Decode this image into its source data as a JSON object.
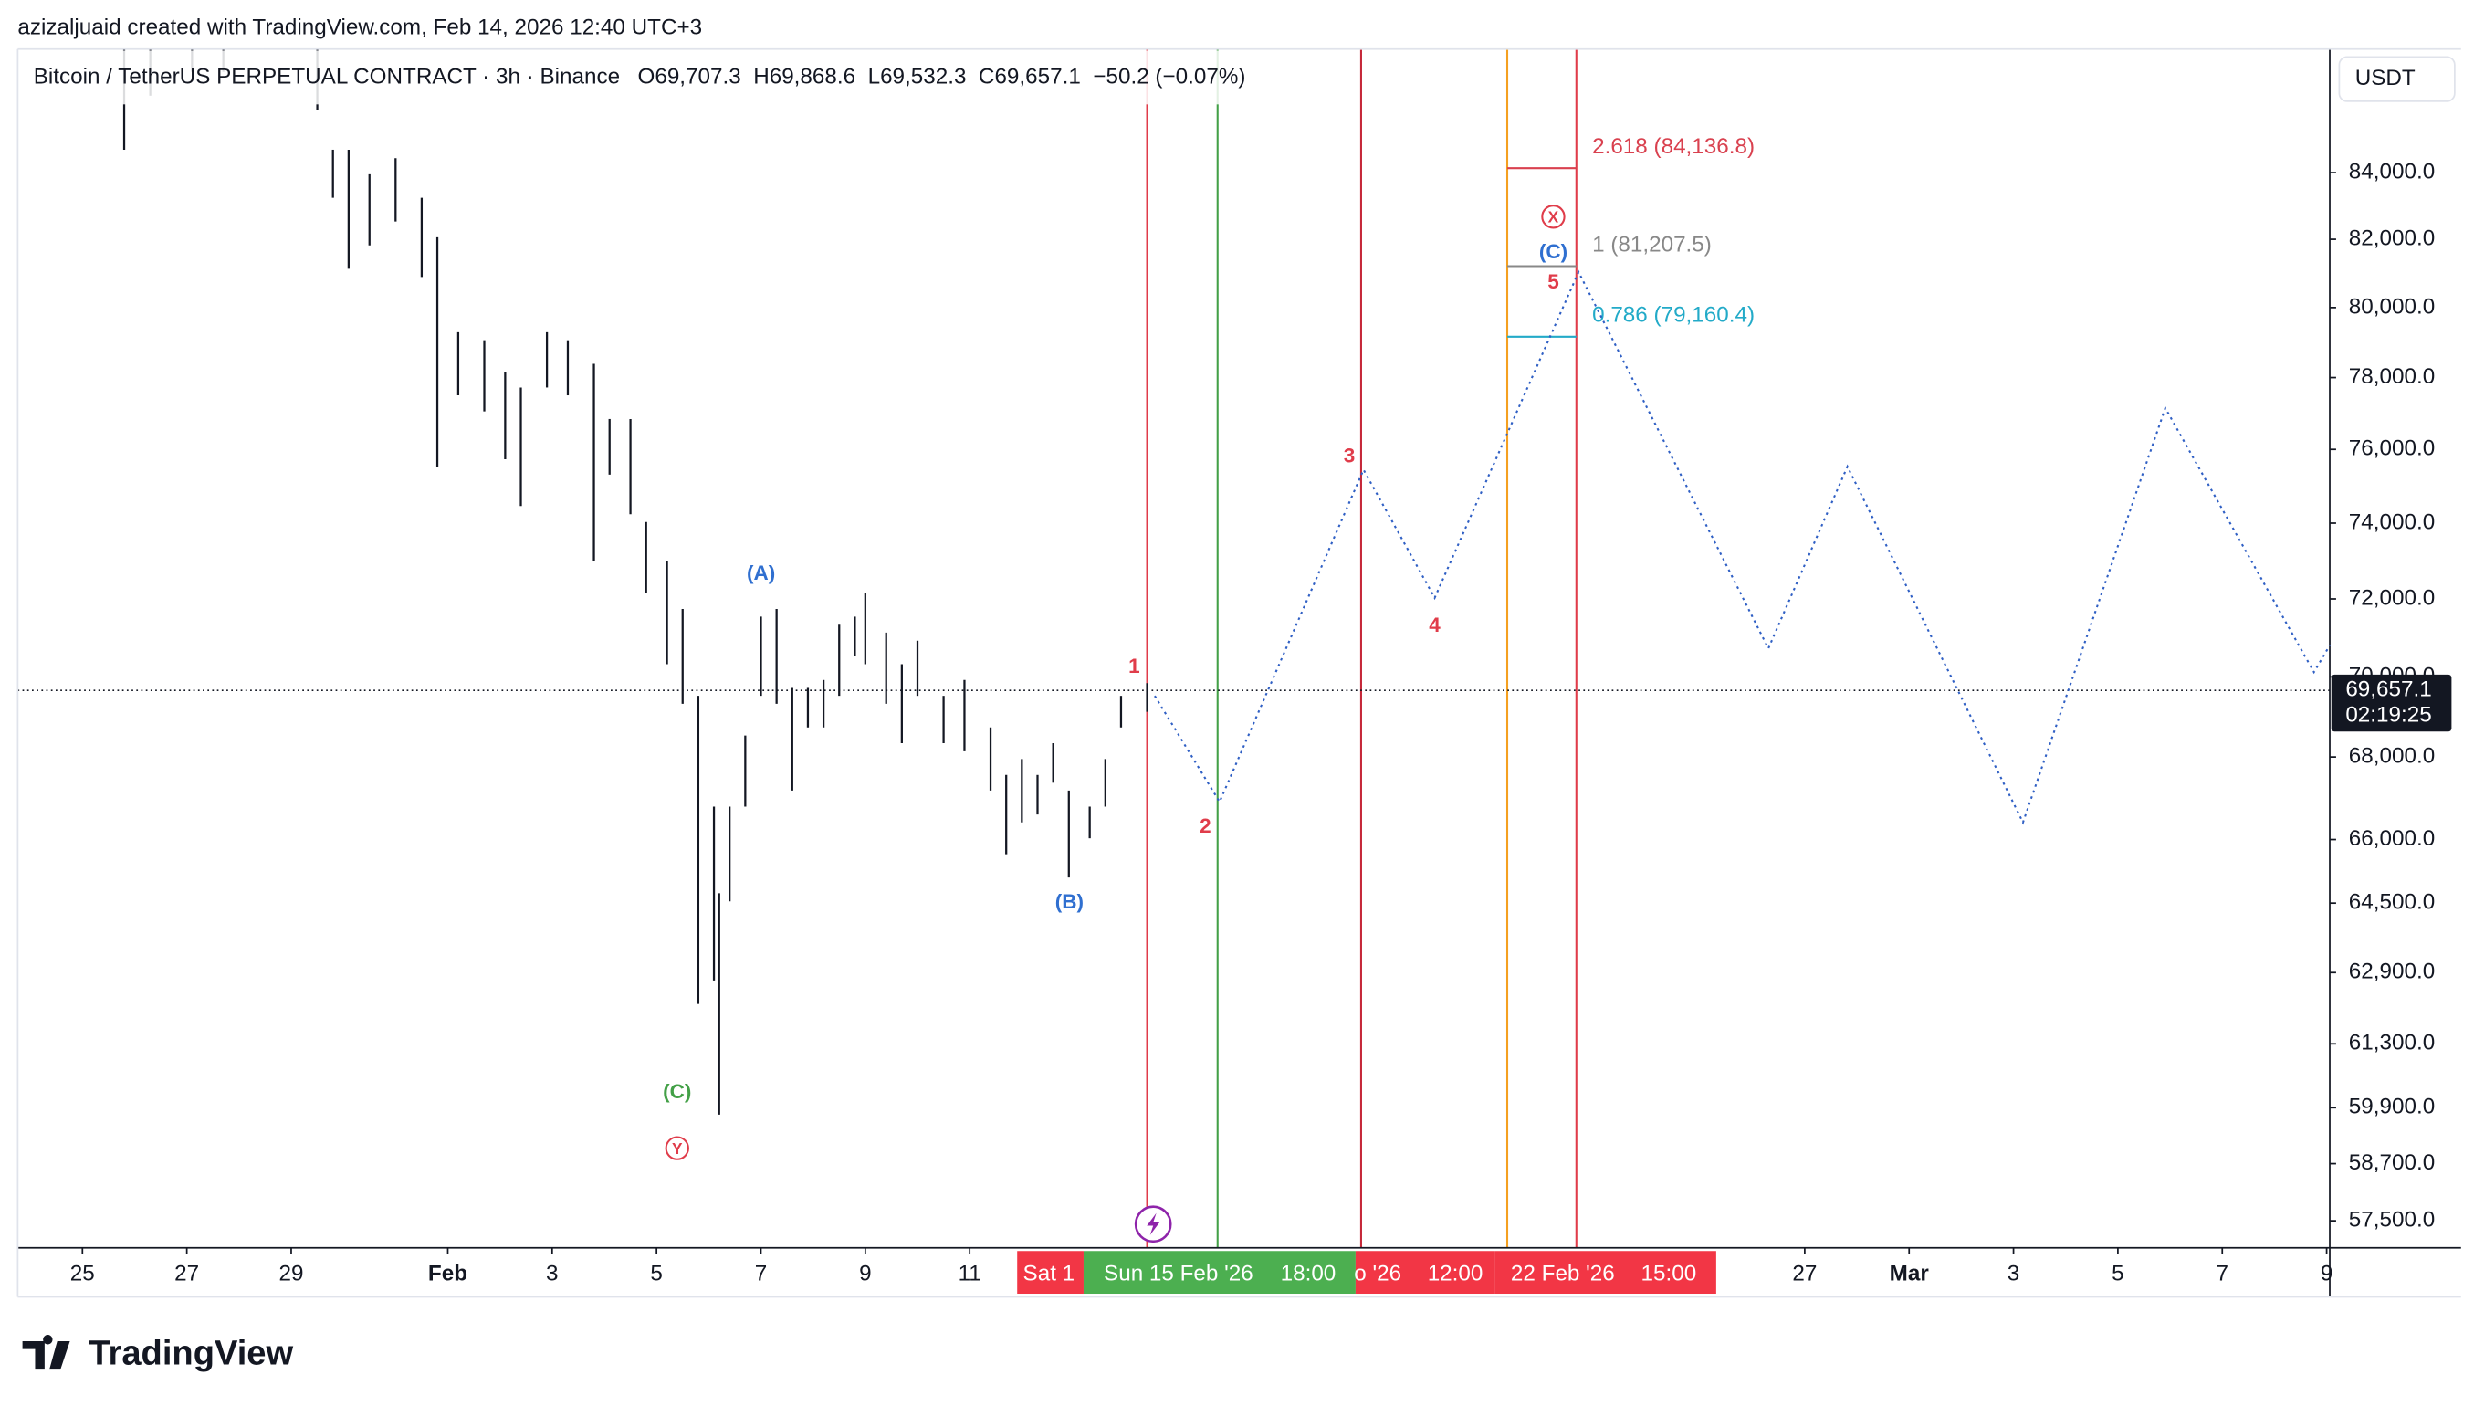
{
  "header": {
    "credit": "azizaljuaid created with TradingView.com, Feb 14, 2026 12:40 UTC+3",
    "brand": "TradingView"
  },
  "chart_data": {
    "type": "ohlc",
    "title": "Bitcoin / TetherUS PERPETUAL CONTRACT · 3h · Binance",
    "ohlc_text": "O69,707.3  H69,868.6  L69,532.3  C69,657.1  −50.2 (−0.07%)",
    "currency": "USDT",
    "log_scale": true,
    "color": "#131722",
    "xlim": [
      23.76,
      68.06
    ],
    "ylim": [
      56940,
      87840
    ],
    "yticks": [
      {
        "value": 84000,
        "label": "84,000.0"
      },
      {
        "value": 82000,
        "label": "82,000.0"
      },
      {
        "value": 80000,
        "label": "80,000.0"
      },
      {
        "value": 78000,
        "label": "78,000.0"
      },
      {
        "value": 76000,
        "label": "76,000.0"
      },
      {
        "value": 74000,
        "label": "74,000.0"
      },
      {
        "value": 72000,
        "label": "72,000.0"
      },
      {
        "value": 70000,
        "label": "70,000.0"
      },
      {
        "value": 68000,
        "label": "68,000.0"
      },
      {
        "value": 66000,
        "label": "66,000.0"
      },
      {
        "value": 64500,
        "label": "64,500.0"
      },
      {
        "value": 62900,
        "label": "62,900.0"
      },
      {
        "value": 61300,
        "label": "61,300.0"
      },
      {
        "value": 59900,
        "label": "59,900.0"
      },
      {
        "value": 58700,
        "label": "58,700.0"
      },
      {
        "value": 57500,
        "label": "57,500.0"
      }
    ],
    "xticks": [
      25,
      27,
      29,
      {
        "value": 32,
        "label": "Feb"
      },
      {
        "value": 34,
        "label": "3"
      },
      {
        "value": 36,
        "label": "5"
      },
      {
        "value": 38,
        "label": "7"
      },
      {
        "value": 40,
        "label": "9"
      },
      {
        "value": 42,
        "label": "11"
      },
      {
        "value": 58,
        "label": "27"
      },
      {
        "value": 60,
        "label": "Mar"
      },
      {
        "value": 62,
        "label": "3"
      },
      {
        "value": 64,
        "label": "5"
      },
      {
        "value": 66,
        "label": "7"
      },
      {
        "value": 68,
        "label": "9"
      }
    ],
    "bars": [
      {
        "x": 25.8,
        "high": 87860,
        "low": 84700
      },
      {
        "x": 26.3,
        "high": 87860,
        "low": 86370
      },
      {
        "x": 27.1,
        "high": 87860,
        "low": 87120
      },
      {
        "x": 27.7,
        "high": 87860,
        "low": 87120
      },
      {
        "x": 29.5,
        "high": 87860,
        "low": 85910
      },
      {
        "x": 29.8,
        "high": 84700,
        "low": 83240
      },
      {
        "x": 30.1,
        "high": 84700,
        "low": 81130
      },
      {
        "x": 30.5,
        "high": 83950,
        "low": 81820
      },
      {
        "x": 31.0,
        "high": 84440,
        "low": 82530
      },
      {
        "x": 31.5,
        "high": 83240,
        "low": 80890
      },
      {
        "x": 31.8,
        "high": 82060,
        "low": 75530
      },
      {
        "x": 32.2,
        "high": 79290,
        "low": 77500
      },
      {
        "x": 32.7,
        "high": 79060,
        "low": 77050
      },
      {
        "x": 33.1,
        "high": 78150,
        "low": 75730
      },
      {
        "x": 33.4,
        "high": 77720,
        "low": 74460
      },
      {
        "x": 33.9,
        "high": 79290,
        "low": 77720
      },
      {
        "x": 34.3,
        "high": 79060,
        "low": 77500
      },
      {
        "x": 34.8,
        "high": 78390,
        "low": 72980
      },
      {
        "x": 35.1,
        "high": 76840,
        "low": 75310
      },
      {
        "x": 35.5,
        "high": 76840,
        "low": 74240
      },
      {
        "x": 35.8,
        "high": 74030,
        "low": 72150
      },
      {
        "x": 36.2,
        "high": 72980,
        "low": 70320
      },
      {
        "x": 36.5,
        "high": 71740,
        "low": 69320
      },
      {
        "x": 36.8,
        "high": 69520,
        "low": 62190
      },
      {
        "x": 37.1,
        "high": 66790,
        "low": 62720
      },
      {
        "x": 37.2,
        "high": 64730,
        "low": 59750
      },
      {
        "x": 37.4,
        "high": 66790,
        "low": 64540
      },
      {
        "x": 37.7,
        "high": 68530,
        "low": 66790
      },
      {
        "x": 38.0,
        "high": 71540,
        "low": 69520
      },
      {
        "x": 38.3,
        "high": 71740,
        "low": 69320
      },
      {
        "x": 38.6,
        "high": 69720,
        "low": 67180
      },
      {
        "x": 38.9,
        "high": 69720,
        "low": 68730
      },
      {
        "x": 39.2,
        "high": 69920,
        "low": 68730
      },
      {
        "x": 39.5,
        "high": 71330,
        "low": 69520
      },
      {
        "x": 39.8,
        "high": 71540,
        "low": 70520
      },
      {
        "x": 40.0,
        "high": 72150,
        "low": 70320
      },
      {
        "x": 40.4,
        "high": 71130,
        "low": 69320
      },
      {
        "x": 40.7,
        "high": 70320,
        "low": 68340
      },
      {
        "x": 41.0,
        "high": 70920,
        "low": 69520
      },
      {
        "x": 41.5,
        "high": 69520,
        "low": 68340
      },
      {
        "x": 41.9,
        "high": 69920,
        "low": 68140
      },
      {
        "x": 42.4,
        "high": 68730,
        "low": 67180
      },
      {
        "x": 42.7,
        "high": 67560,
        "low": 65650
      },
      {
        "x": 43.0,
        "high": 67950,
        "low": 66410
      },
      {
        "x": 43.3,
        "high": 67560,
        "low": 66600
      },
      {
        "x": 43.6,
        "high": 68340,
        "low": 67370
      },
      {
        "x": 43.9,
        "high": 67180,
        "low": 65100
      },
      {
        "x": 44.3,
        "high": 66790,
        "low": 66030
      },
      {
        "x": 44.6,
        "high": 67950,
        "low": 66790
      },
      {
        "x": 44.9,
        "high": 69520,
        "low": 68730
      },
      {
        "x": 45.4,
        "high": 69840,
        "low": 69120
      }
    ],
    "last_price": {
      "value": 69657.1,
      "label": "69,657.1"
    },
    "countdown": "02:19:25",
    "vertical_lines": [
      {
        "x": 45.4,
        "color": "#e03c4a"
      },
      {
        "x": 46.75,
        "color": "#43a047"
      },
      {
        "x": 49.5,
        "color": "#c62839"
      },
      {
        "x": 52.3,
        "color": "#f5a020"
      },
      {
        "x": 53.625,
        "color": "#e03c4a"
      }
    ],
    "time_labels": [
      {
        "texts": [
          "Sat 1"
        ],
        "color": "#f23645"
      },
      {
        "texts": [
          "Sun 15 Feb '26",
          "18:00"
        ],
        "color": "#4caf50"
      },
      {
        "texts": [
          "o '26",
          "12:00"
        ],
        "color": "#f23645"
      },
      {
        "texts": [
          "22 Feb '26",
          "15:00"
        ],
        "color": "#f23645"
      }
    ],
    "fib_levels": [
      {
        "value": 84136.8,
        "label": "2.618 (84,136.8)",
        "color": "#d9414f"
      },
      {
        "value": 81207.5,
        "label": "1 (81,207.5)",
        "color": "#888888"
      },
      {
        "value": 79160.4,
        "label": "0.786 (79,160.4)",
        "color": "#22aac8"
      }
    ],
    "wave_labels": [
      "(A)",
      "(B)",
      "(C)",
      "Y",
      "1",
      "2",
      "3",
      "4",
      "5",
      "(C)",
      "X"
    ]
  }
}
